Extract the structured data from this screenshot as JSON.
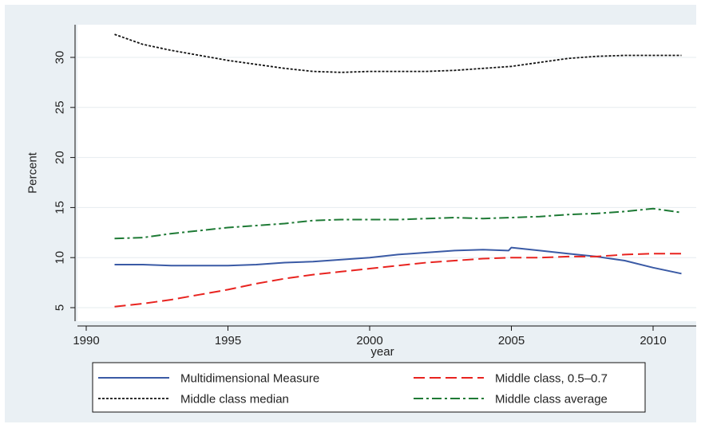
{
  "chart_data": {
    "type": "line",
    "title": "",
    "xlabel": "year",
    "ylabel": "Percent",
    "xlim": [
      1990,
      2011
    ],
    "ylim": [
      4.3,
      33.0
    ],
    "xticks": [
      1990,
      1995,
      2000,
      2005,
      2010
    ],
    "yticks": [
      5,
      10,
      15,
      20,
      25,
      30
    ],
    "grid": "horizontal",
    "legend_position": "bottom",
    "series": [
      {
        "name": "Multidimensional Measure",
        "color": "#3a5aa5",
        "dash": "solid",
        "x": [
          1991,
          1992,
          1993,
          1994,
          1995,
          1996,
          1997,
          1998,
          1999,
          2000,
          2001,
          2002,
          2003,
          2004,
          2004.9,
          2005,
          2006,
          2007,
          2008,
          2009,
          2010,
          2011
        ],
        "y": [
          9.3,
          9.3,
          9.2,
          9.2,
          9.2,
          9.3,
          9.5,
          9.6,
          9.8,
          10.0,
          10.3,
          10.5,
          10.7,
          10.8,
          10.7,
          11.0,
          10.7,
          10.4,
          10.1,
          9.7,
          9.0,
          8.4
        ]
      },
      {
        "name": "Middle class, 0.5–0.7",
        "color": "#e8231f",
        "dash": "dashed",
        "x": [
          1991,
          1992,
          1993,
          1994,
          1995,
          1996,
          1997,
          1998,
          1999,
          2000,
          2001,
          2002,
          2003,
          2004,
          2005,
          2006,
          2007,
          2008,
          2009,
          2010,
          2011
        ],
        "y": [
          5.1,
          5.4,
          5.8,
          6.3,
          6.8,
          7.4,
          7.9,
          8.3,
          8.6,
          8.9,
          9.2,
          9.5,
          9.7,
          9.9,
          10.0,
          10.0,
          10.1,
          10.1,
          10.3,
          10.4,
          10.4
        ]
      },
      {
        "name": "Middle class median",
        "color": "#111111",
        "dash": "dotted",
        "x": [
          1991,
          1992,
          1993,
          1994,
          1995,
          1996,
          1997,
          1998,
          1999,
          2000,
          2001,
          2002,
          2003,
          2004,
          2005,
          2006,
          2007,
          2008,
          2009,
          2010,
          2011
        ],
        "y": [
          32.3,
          31.3,
          30.7,
          30.2,
          29.7,
          29.3,
          28.9,
          28.6,
          28.5,
          28.6,
          28.6,
          28.6,
          28.7,
          28.9,
          29.1,
          29.5,
          29.9,
          30.1,
          30.2,
          30.2,
          30.2
        ]
      },
      {
        "name": "Middle class average",
        "color": "#1e7a35",
        "dash": "dashdot",
        "x": [
          1991,
          1992,
          1993,
          1994,
          1995,
          1996,
          1997,
          1998,
          1999,
          2000,
          2001,
          2002,
          2003,
          2004,
          2005,
          2006,
          2007,
          2008,
          2009,
          2010,
          2011
        ],
        "y": [
          11.9,
          12.0,
          12.4,
          12.7,
          13.0,
          13.2,
          13.4,
          13.7,
          13.8,
          13.8,
          13.8,
          13.9,
          14.0,
          13.9,
          14.0,
          14.1,
          14.3,
          14.4,
          14.6,
          14.9,
          14.5
        ]
      }
    ],
    "legend_order": [
      0,
      1,
      2,
      3
    ]
  }
}
